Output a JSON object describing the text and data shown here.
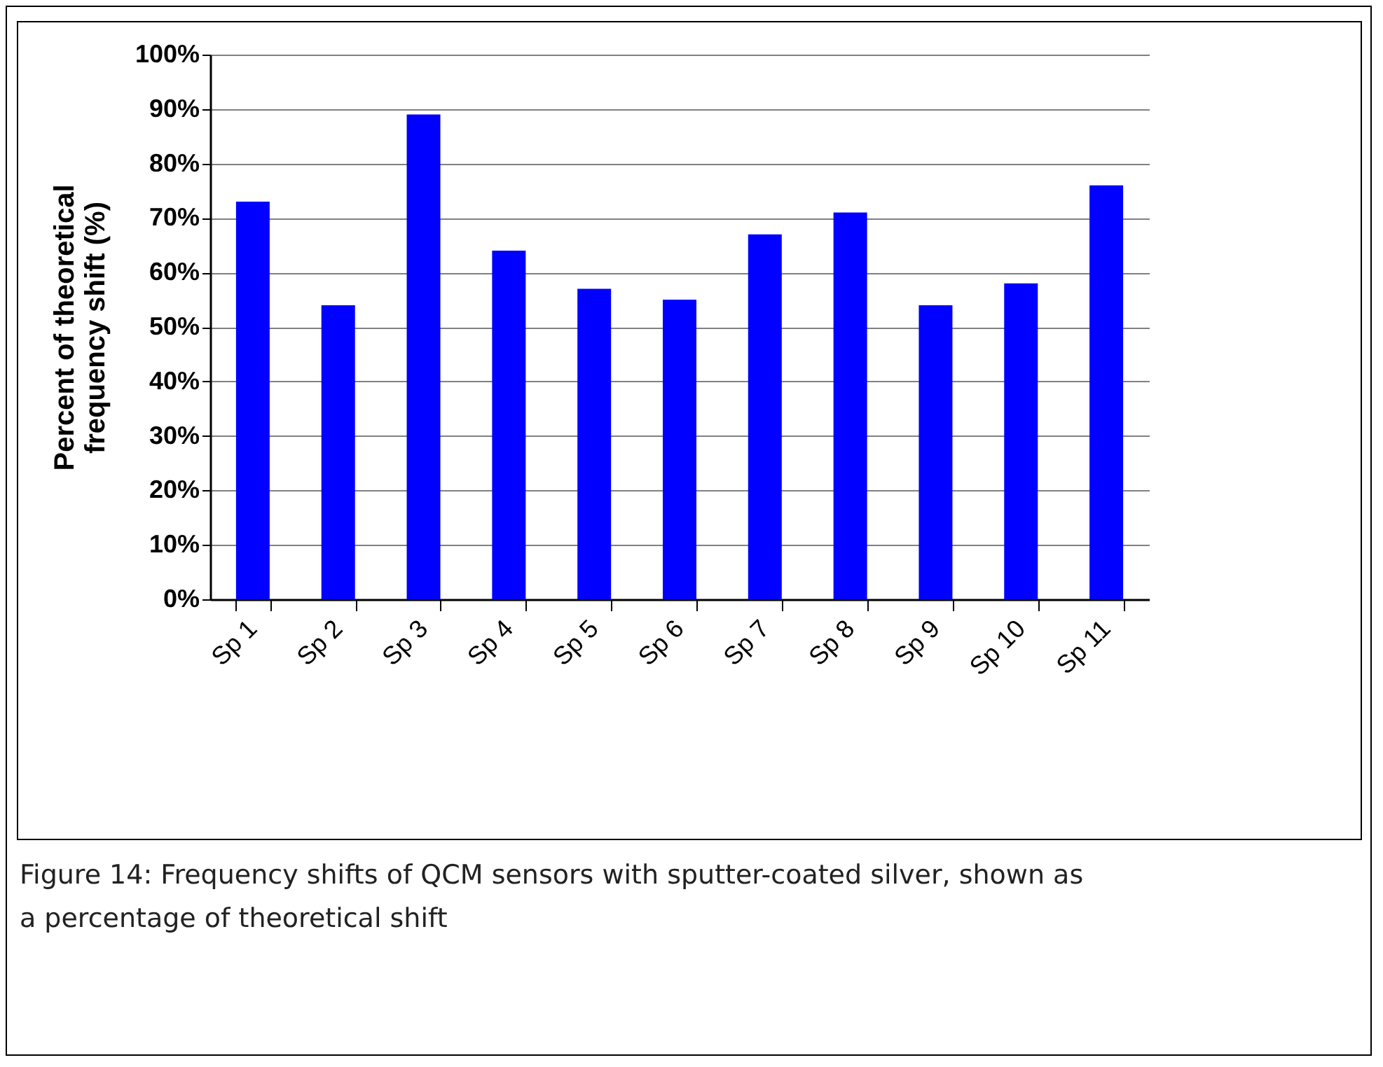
{
  "chart_data": {
    "type": "bar",
    "ylabel": "Percent of theoretical frequency shift (%)",
    "categories": [
      "Sp 1",
      "Sp 2",
      "Sp 3",
      "Sp 4",
      "Sp 5",
      "Sp 6",
      "Sp 7",
      "Sp 8",
      "Sp 9",
      "Sp 10",
      "Sp 11"
    ],
    "values": [
      73,
      54,
      89,
      64,
      57,
      55,
      67,
      71,
      54,
      58,
      76
    ],
    "color": "#0000ff",
    "ylim": [
      0,
      100
    ],
    "yticks": [
      {
        "value": 0,
        "label": "0%"
      },
      {
        "value": 10,
        "label": "10%"
      },
      {
        "value": 20,
        "label": "20%"
      },
      {
        "value": 30,
        "label": "30%"
      },
      {
        "value": 40,
        "label": "40%"
      },
      {
        "value": 50,
        "label": "50%"
      },
      {
        "value": 60,
        "label": "60%"
      },
      {
        "value": 70,
        "label": "70%"
      },
      {
        "value": 80,
        "label": "80%"
      },
      {
        "value": 90,
        "label": "90%"
      },
      {
        "value": 100,
        "label": "100%"
      }
    ],
    "grid": "y",
    "annotations": [
      "Figure 14:  Frequency shifts of QCM sensors with sputter-coated silver, shown as a percentage of theoretical shift"
    ]
  }
}
